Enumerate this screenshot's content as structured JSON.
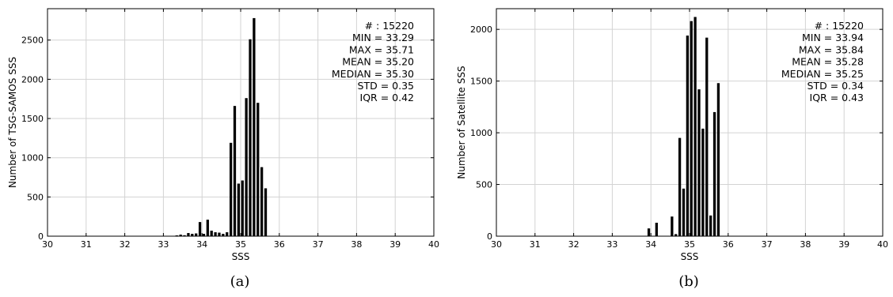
{
  "chart_data": [
    {
      "type": "bar",
      "caption": "(a)",
      "xlabel": "SSS",
      "ylabel": "Number of TSG-SAMOS SSS",
      "xlim": [
        30,
        40
      ],
      "ylim": [
        0,
        2900
      ],
      "xticks": [
        30,
        31,
        32,
        33,
        34,
        35,
        36,
        37,
        38,
        39,
        40
      ],
      "yticks": [
        0,
        500,
        1000,
        1500,
        2000,
        2500
      ],
      "grid": true,
      "bin_width": 0.1,
      "bins": [
        {
          "x": 33.3,
          "y": 10
        },
        {
          "x": 33.4,
          "y": 20
        },
        {
          "x": 33.5,
          "y": 12
        },
        {
          "x": 33.6,
          "y": 40
        },
        {
          "x": 33.7,
          "y": 30
        },
        {
          "x": 33.8,
          "y": 35
        },
        {
          "x": 33.9,
          "y": 180
        },
        {
          "x": 34.0,
          "y": 30
        },
        {
          "x": 34.1,
          "y": 210
        },
        {
          "x": 34.2,
          "y": 70
        },
        {
          "x": 34.3,
          "y": 50
        },
        {
          "x": 34.4,
          "y": 45
        },
        {
          "x": 34.5,
          "y": 30
        },
        {
          "x": 34.6,
          "y": 50
        },
        {
          "x": 34.7,
          "y": 1190
        },
        {
          "x": 34.8,
          "y": 1660
        },
        {
          "x": 34.9,
          "y": 670
        },
        {
          "x": 35.0,
          "y": 710
        },
        {
          "x": 35.1,
          "y": 1760
        },
        {
          "x": 35.2,
          "y": 2510
        },
        {
          "x": 35.3,
          "y": 2780
        },
        {
          "x": 35.4,
          "y": 1700
        },
        {
          "x": 35.5,
          "y": 880
        },
        {
          "x": 35.6,
          "y": 610
        }
      ],
      "stats": [
        "# : 15220",
        "MIN = 33.29",
        "MAX =  35.71",
        "MEAN = 35.20",
        "MEDIAN = 35.30",
        "STD = 0.35",
        "IQR = 0.42"
      ]
    },
    {
      "type": "bar",
      "caption": "(b)",
      "xlabel": "SSS",
      "ylabel": "Number of Satellite SSS",
      "xlim": [
        30,
        40
      ],
      "ylim": [
        0,
        2200
      ],
      "xticks": [
        30,
        31,
        32,
        33,
        34,
        35,
        36,
        37,
        38,
        39,
        40
      ],
      "yticks": [
        0,
        500,
        1000,
        1500,
        2000
      ],
      "grid": true,
      "bin_width": 0.1,
      "bins": [
        {
          "x": 33.9,
          "y": 75
        },
        {
          "x": 34.0,
          "y": 0
        },
        {
          "x": 34.1,
          "y": 130
        },
        {
          "x": 34.5,
          "y": 190
        },
        {
          "x": 34.6,
          "y": 20
        },
        {
          "x": 34.7,
          "y": 950
        },
        {
          "x": 34.8,
          "y": 460
        },
        {
          "x": 34.9,
          "y": 1940
        },
        {
          "x": 35.0,
          "y": 2080
        },
        {
          "x": 35.1,
          "y": 2120
        },
        {
          "x": 35.2,
          "y": 1420
        },
        {
          "x": 35.3,
          "y": 1040
        },
        {
          "x": 35.4,
          "y": 1920
        },
        {
          "x": 35.5,
          "y": 200
        },
        {
          "x": 35.6,
          "y": 1200
        },
        {
          "x": 35.7,
          "y": 1480
        }
      ],
      "stats": [
        "# : 15220",
        "MIN = 33.94",
        "MAX =  35.84",
        "MEAN = 35.28",
        "MEDIAN = 35.25",
        "STD = 0.34",
        "IQR = 0.43"
      ]
    }
  ]
}
